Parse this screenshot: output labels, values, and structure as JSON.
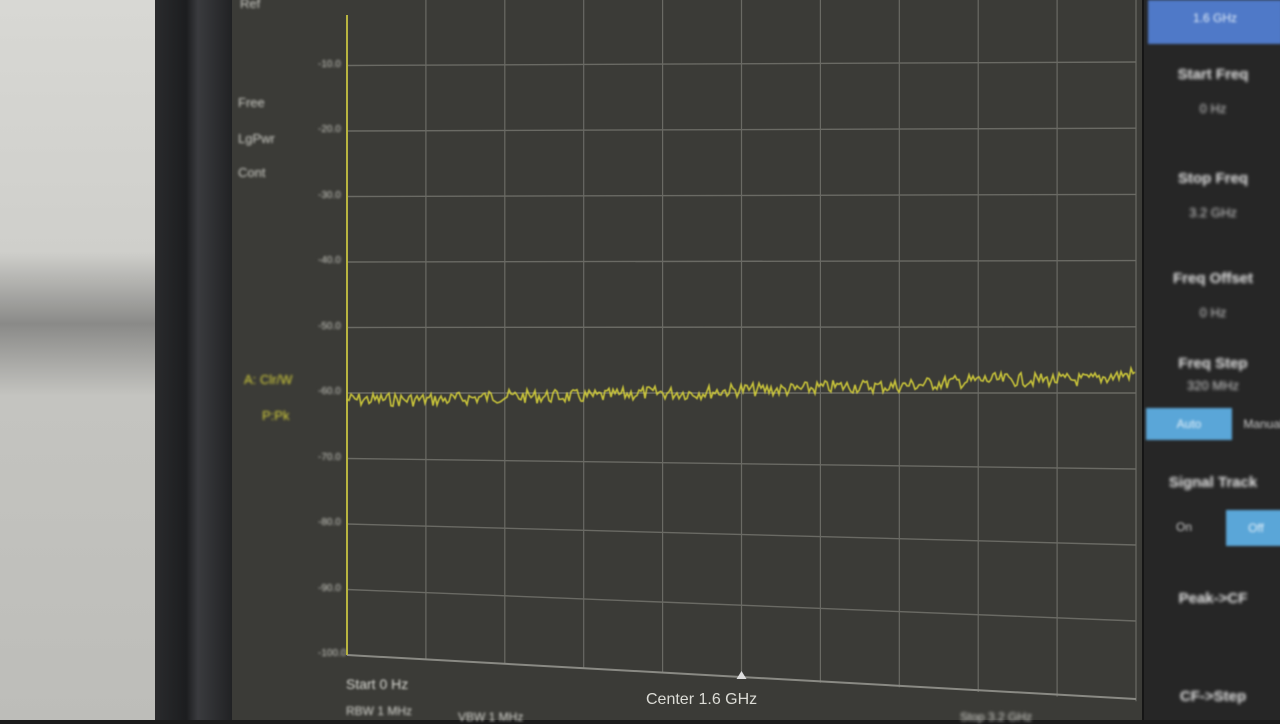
{
  "left_labels": {
    "top": "Ref",
    "mode1": "Free",
    "mode2": "LgPwr",
    "mode3": "Cont",
    "trace_a": "A: Clr/W",
    "trace_p": "P:Pk"
  },
  "y_ticks": [
    "-10.0",
    "-20.0",
    "-30.0",
    "-40.0",
    "-50.0",
    "-60.0",
    "-70.0",
    "-80.0",
    "-90.0",
    "-100.0"
  ],
  "bottom": {
    "start": "Start  0 Hz",
    "center": "Center  1.6 GHz",
    "stop": "Stop  3.2 GHz",
    "rbw": "RBW  1 MHz",
    "vbw": "VBW  1 MHz"
  },
  "panel": {
    "top_button": "1.6 GHz",
    "start_freq": {
      "label": "Start Freq",
      "value": "0 Hz"
    },
    "stop_freq": {
      "label": "Stop Freq",
      "value": "3.2 GHz"
    },
    "freq_offset": {
      "label": "Freq Offset",
      "value": "0 Hz"
    },
    "freq_step": {
      "label": "Freq Step",
      "value": "320 MHz",
      "auto": "Auto",
      "manual": "Manual"
    },
    "signal_track": {
      "label": "Signal Track",
      "on": "On",
      "off": "Off"
    },
    "peak_cf": "Peak->CF",
    "cf_step": "CF->Step"
  },
  "colors": {
    "trace": "#d7d23a",
    "accent_button": "#5aa6d8",
    "top_button": "#4f79c8",
    "screen": "#3b3b37"
  },
  "chart_data": {
    "type": "line",
    "xlabel": "",
    "ylabel": "",
    "xlim": [
      0,
      3.2
    ],
    "ylim": [
      -100,
      0
    ],
    "grid": true,
    "x": [
      0,
      0.2,
      0.4,
      0.6,
      0.8,
      1.0,
      1.2,
      1.4,
      1.6,
      1.8,
      2.0,
      2.2,
      2.4,
      2.6,
      2.8,
      3.0,
      3.2
    ],
    "series": [
      {
        "values": [
          -61,
          -61,
          -61,
          -60.5,
          -60.5,
          -60.5,
          -60,
          -60,
          -59.5,
          -59.5,
          -59,
          -59,
          -58.5,
          -58,
          -58,
          -58,
          -57
        ]
      }
    ]
  }
}
